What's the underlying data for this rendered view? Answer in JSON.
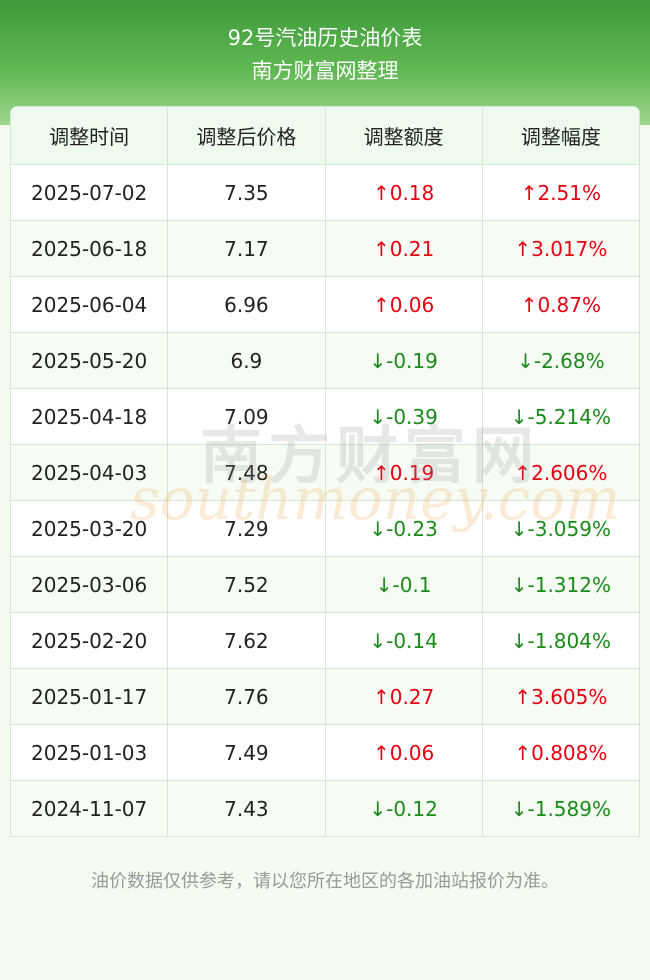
{
  "header": {
    "title": "92号汽油历史油价表",
    "subtitle": "南方财富网整理"
  },
  "table": {
    "columns": [
      "调整时间",
      "调整后价格",
      "调整额度",
      "调整幅度"
    ],
    "rows": [
      [
        "2025-07-02",
        "7.35",
        "↑0.18",
        "↑2.51%"
      ],
      [
        "2025-06-18",
        "7.17",
        "↑0.21",
        "↑3.017%"
      ],
      [
        "2025-06-04",
        "6.96",
        "↑0.06",
        "↑0.87%"
      ],
      [
        "2025-05-20",
        "6.9",
        "↓-0.19",
        "↓-2.68%"
      ],
      [
        "2025-04-18",
        "7.09",
        "↓-0.39",
        "↓-5.214%"
      ],
      [
        "2025-04-03",
        "7.48",
        "↑0.19",
        "↑2.606%"
      ],
      [
        "2025-03-20",
        "7.29",
        "↓-0.23",
        "↓-3.059%"
      ],
      [
        "2025-03-06",
        "7.52",
        "↓-0.1",
        "↓-1.312%"
      ],
      [
        "2025-02-20",
        "7.62",
        "↓-0.14",
        "↓-1.804%"
      ],
      [
        "2025-01-17",
        "7.76",
        "↑0.27",
        "↑3.605%"
      ],
      [
        "2025-01-03",
        "7.49",
        "↑0.06",
        "↑0.808%"
      ],
      [
        "2024-11-07",
        "7.43",
        "↓-0.12",
        "↓-1.589%"
      ]
    ],
    "up_color": "#e60012",
    "down_color": "#1a8a1a"
  },
  "watermark": {
    "brand": "南方财富网",
    "domain": "southmoney.com"
  },
  "footer": {
    "note": "油价数据仅供参考，请以您所在地区的各加油站报价为准。"
  }
}
